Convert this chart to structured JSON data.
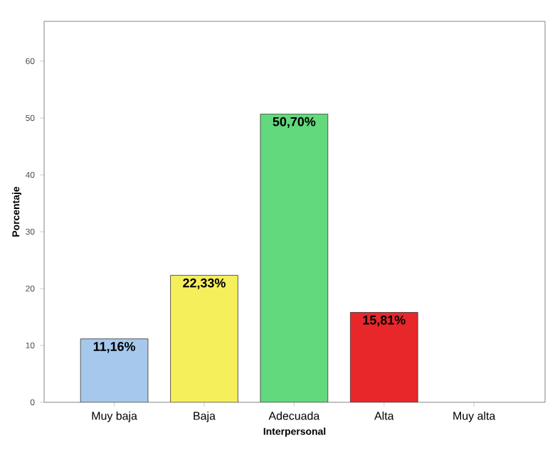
{
  "chart_data": {
    "type": "bar",
    "xlabel": "Interpersonal",
    "ylabel": "Porcentaje",
    "categories": [
      "Muy baja",
      "Baja",
      "Adecuada",
      "Alta",
      "Muy alta"
    ],
    "values": [
      11.16,
      22.33,
      50.7,
      15.81,
      null
    ],
    "value_labels": [
      "11,16%",
      "22,33%",
      "50,70%",
      "15,81%",
      null
    ],
    "colors": [
      "#a6c8ec",
      "#f5ef5c",
      "#62d97c",
      "#e8272b",
      null
    ],
    "ylim": [
      0,
      67
    ],
    "yticks": [
      0,
      10,
      20,
      30,
      40,
      50,
      60
    ]
  }
}
